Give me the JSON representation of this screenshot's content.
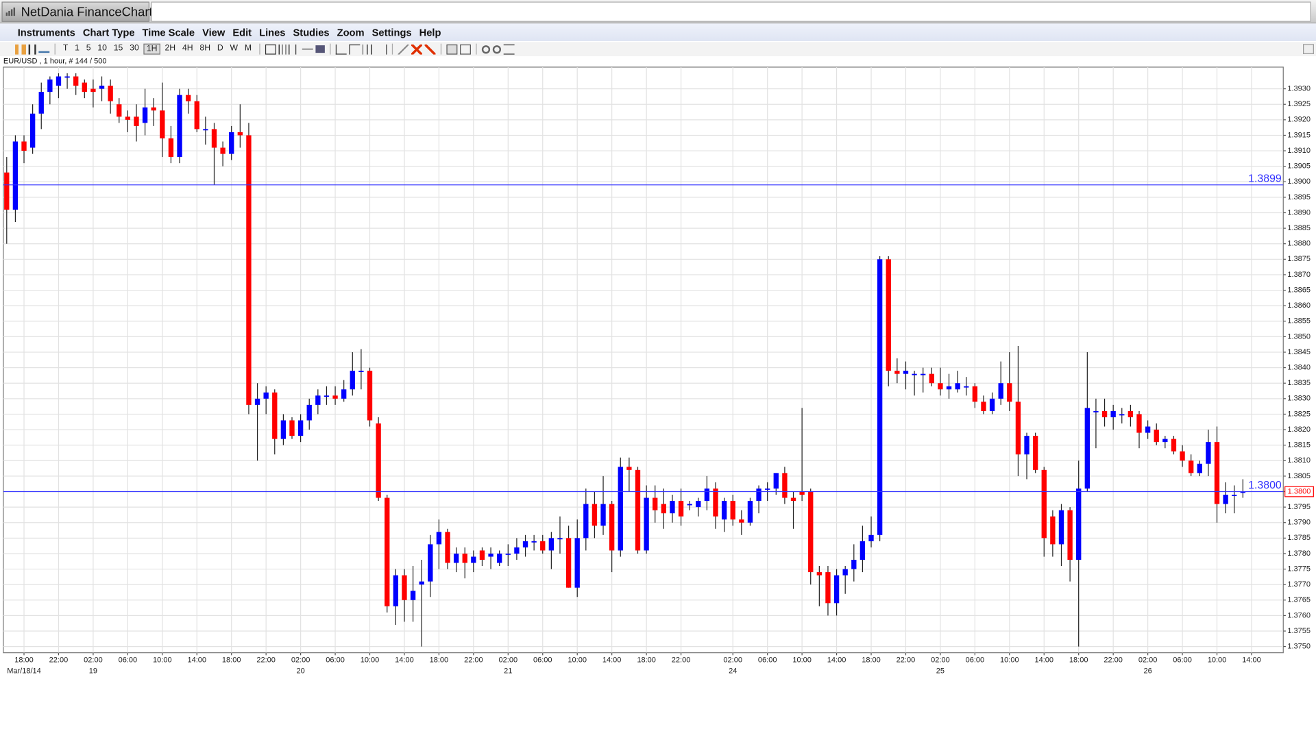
{
  "app": {
    "title": "NetDania FinanceChart",
    "menu": [
      "Instruments",
      "Chart Type",
      "Time Scale",
      "View",
      "Edit",
      "Lines",
      "Studies",
      "Zoom",
      "Settings",
      "Help"
    ],
    "toolbar": [
      "T",
      "1",
      "5",
      "10",
      "15",
      "30",
      "1H",
      "2H",
      "4H",
      "8H",
      "D",
      "W",
      "M"
    ]
  },
  "chart_data": {
    "type": "candlestick",
    "title": "EUR/USD , 1 hour, # 144 / 500",
    "up_color": "#0000ff",
    "down_color": "#ff0000",
    "wick_color": "#222222",
    "grid": true,
    "categories": [
      null,
      null,
      "18:00",
      null,
      null,
      null,
      "22:00",
      null,
      null,
      null,
      "02:00",
      null,
      null,
      null,
      "06:00",
      null,
      null,
      null,
      "10:00",
      null,
      null,
      null,
      "14:00",
      null,
      null,
      null,
      "18:00",
      null,
      null,
      null,
      "22:00",
      null,
      null,
      null,
      "02:00",
      null,
      null,
      null,
      "06:00",
      null,
      null,
      null,
      "10:00",
      null,
      null,
      null,
      "14:00",
      null,
      null,
      null,
      "18:00",
      null,
      null,
      null,
      "22:00",
      null,
      null,
      null,
      "02:00",
      null,
      null,
      null,
      "06:00",
      null,
      null,
      null,
      "10:00",
      null,
      null,
      null,
      "14:00",
      null,
      null,
      null,
      "18:00",
      null,
      null,
      null,
      "22:00",
      null,
      null,
      null,
      null,
      null,
      "02:00",
      null,
      null,
      null,
      "06:00",
      null,
      null,
      null,
      "10:00",
      null,
      null,
      null,
      "14:00",
      null,
      null,
      null,
      "18:00",
      null,
      null,
      null,
      "22:00",
      null,
      null,
      null,
      "02:00",
      null,
      null,
      null,
      "06:00",
      null,
      null,
      null,
      "10:00",
      null,
      null,
      null,
      "14:00",
      null,
      null,
      null,
      "18:00",
      null,
      null,
      null,
      "22:00",
      null,
      null,
      null,
      "02:00",
      null,
      null,
      null,
      "06:00",
      null,
      null,
      null,
      "10:00",
      null,
      null,
      null,
      "14:00"
    ],
    "x_sublabels": [
      null,
      null,
      "Mar/18/14",
      null,
      null,
      null,
      null,
      null,
      null,
      null,
      "19",
      null,
      null,
      null,
      null,
      null,
      null,
      null,
      null,
      null,
      null,
      null,
      null,
      null,
      null,
      null,
      null,
      null,
      null,
      null,
      null,
      null,
      null,
      null,
      "20",
      null,
      null,
      null,
      null,
      null,
      null,
      null,
      null,
      null,
      null,
      null,
      null,
      null,
      null,
      null,
      null,
      null,
      null,
      null,
      null,
      null,
      null,
      null,
      "21",
      null,
      null,
      null,
      null,
      null,
      null,
      null,
      null,
      null,
      null,
      null,
      null,
      null,
      null,
      null,
      null,
      null,
      null,
      null,
      null,
      null,
      null,
      null,
      null,
      null,
      "24",
      null,
      null,
      null,
      null,
      null,
      null,
      null,
      null,
      null,
      null,
      null,
      null,
      null,
      null,
      null,
      null,
      null,
      null,
      null,
      null,
      null,
      null,
      null,
      "25",
      null,
      null,
      null,
      null,
      null,
      null,
      null,
      null,
      null,
      null,
      null,
      null,
      null,
      null,
      null,
      null,
      null,
      null,
      null,
      null,
      null,
      null,
      null,
      "26",
      null,
      null,
      null,
      null,
      null,
      null,
      null,
      null,
      null,
      null,
      null,
      null
    ],
    "open": [
      1.3903,
      1.3891,
      1.3913,
      1.3911,
      1.3922,
      1.3929,
      1.3931,
      1.3934,
      1.3934,
      1.3932,
      1.393,
      1.393,
      1.3931,
      1.3925,
      1.3921,
      1.3921,
      1.3919,
      1.3924,
      1.3923,
      1.3914,
      1.3908,
      1.3928,
      1.3926,
      1.3917,
      1.3917,
      1.3911,
      1.3909,
      1.3916,
      1.3915,
      1.3828,
      1.383,
      1.3832,
      1.3817,
      1.3823,
      1.3818,
      1.3823,
      1.3828,
      1.3831,
      1.3831,
      1.383,
      1.3833,
      1.3839,
      1.3839,
      1.3822,
      1.3798,
      1.3763,
      1.3773,
      1.3765,
      1.377,
      1.3771,
      1.3783,
      1.3787,
      1.3777,
      1.378,
      1.3777,
      1.3781,
      1.3779,
      1.3777,
      1.378,
      1.378,
      1.3782,
      1.3784,
      1.3784,
      1.3781,
      1.3785,
      1.3785,
      1.3769,
      1.3785,
      1.3796,
      1.3789,
      1.3796,
      1.3781,
      1.3808,
      1.3807,
      1.3781,
      1.3798,
      1.3796,
      1.3793,
      1.3797,
      1.3796,
      1.3795,
      1.3797,
      1.3801,
      1.3791,
      1.3797,
      1.3791,
      1.379,
      1.3797,
      1.3801,
      1.3801,
      1.3806,
      1.3798,
      1.38,
      1.38,
      1.3774,
      1.3774,
      1.3764,
      1.3773,
      1.3775,
      1.3778,
      1.3784,
      1.3786,
      1.3875,
      1.3839,
      1.3838,
      1.3838,
      1.3838,
      1.3838,
      1.3835,
      1.3833,
      1.3833,
      1.3834,
      1.3834,
      1.3829,
      1.3826,
      1.383,
      1.3835,
      1.3829,
      1.3812,
      1.3818,
      1.3807,
      1.3792,
      1.3783,
      1.3794,
      1.3778,
      1.3801,
      1.3826,
      1.3826,
      1.3824,
      1.3825,
      1.3826,
      1.3825,
      1.3819,
      1.382,
      1.3816,
      1.3817,
      1.3813,
      1.381,
      1.3806,
      1.3809,
      1.3816,
      1.3796,
      1.3799,
      1.38,
      null
    ],
    "high": [
      1.3908,
      1.3915,
      1.3915,
      1.3925,
      1.3932,
      1.3934,
      1.3935,
      1.3935,
      1.3935,
      1.3933,
      1.3933,
      1.3934,
      1.3933,
      1.3927,
      1.3923,
      1.3925,
      1.393,
      1.3927,
      1.3932,
      1.3918,
      1.393,
      1.393,
      1.3928,
      1.3921,
      1.3919,
      1.3913,
      1.3918,
      1.3925,
      1.3919,
      1.3835,
      1.3834,
      1.3833,
      1.3825,
      1.3824,
      1.3825,
      1.383,
      1.3833,
      1.3834,
      1.3834,
      1.3836,
      1.3845,
      1.3846,
      1.384,
      1.3824,
      1.3799,
      1.3775,
      1.3775,
      1.3776,
      1.3778,
      1.3786,
      1.3791,
      1.3788,
      1.3782,
      1.3782,
      1.3781,
      1.3782,
      1.3782,
      1.3781,
      1.3783,
      1.3785,
      1.3786,
      1.3786,
      1.3786,
      1.3787,
      1.3792,
      1.3789,
      1.3791,
      1.3801,
      1.38,
      1.3805,
      1.3797,
      1.3811,
      1.3811,
      1.3808,
      1.3802,
      1.3802,
      1.3801,
      1.3799,
      1.3801,
      1.3797,
      1.3798,
      1.3805,
      1.3803,
      1.3798,
      1.3799,
      1.3794,
      1.3798,
      1.3802,
      1.3803,
      1.3806,
      1.3808,
      1.38,
      1.3827,
      1.3801,
      1.3776,
      1.3776,
      1.3775,
      1.3776,
      1.3783,
      1.3789,
      1.3792,
      1.3876,
      1.3876,
      1.3843,
      1.3842,
      1.3839,
      1.384,
      1.384,
      1.384,
      1.3838,
      1.3839,
      1.3837,
      1.3835,
      1.3831,
      1.3832,
      1.3842,
      1.3845,
      1.3847,
      1.3819,
      1.3819,
      1.3808,
      1.3794,
      1.3796,
      1.3795,
      1.381,
      1.3845,
      1.383,
      1.383,
      1.3828,
      1.3827,
      1.3828,
      1.3826,
      1.3823,
      1.3822,
      1.3818,
      1.3818,
      1.3815,
      1.3812,
      1.381,
      1.382,
      1.3821,
      1.3803,
      1.3802,
      1.3804,
      null
    ],
    "low": [
      1.388,
      1.3887,
      1.3906,
      1.3909,
      1.3917,
      1.3925,
      1.3927,
      1.393,
      1.3928,
      1.3927,
      1.3924,
      1.3926,
      1.3922,
      1.3919,
      1.3916,
      1.3913,
      1.3915,
      1.3918,
      1.3908,
      1.3906,
      1.3906,
      1.3922,
      1.3916,
      1.3912,
      1.3899,
      1.3905,
      1.3907,
      1.3911,
      1.3825,
      1.381,
      1.3825,
      1.3812,
      1.3815,
      1.3817,
      1.3816,
      1.382,
      1.3825,
      1.3828,
      1.3828,
      1.3829,
      1.3831,
      1.3833,
      1.3821,
      1.3797,
      1.3761,
      1.3757,
      1.3758,
      1.3758,
      1.375,
      1.3766,
      1.3775,
      1.3775,
      1.3774,
      1.3772,
      1.3774,
      1.3776,
      1.3775,
      1.3776,
      1.3776,
      1.3778,
      1.3779,
      1.3781,
      1.378,
      1.3775,
      1.378,
      1.3769,
      1.3766,
      1.3781,
      1.3785,
      1.3786,
      1.3774,
      1.3779,
      1.38,
      1.378,
      1.378,
      1.379,
      1.3788,
      1.379,
      1.3789,
      1.3794,
      1.3792,
      1.3794,
      1.3788,
      1.3787,
      1.3789,
      1.3786,
      1.3789,
      1.3793,
      1.3797,
      1.3799,
      1.3796,
      1.3788,
      1.3797,
      1.377,
      1.3763,
      1.376,
      1.376,
      1.3767,
      1.3771,
      1.3774,
      1.3782,
      1.3784,
      1.3834,
      1.3835,
      1.3833,
      1.3831,
      1.3832,
      1.3834,
      1.3831,
      1.383,
      1.3832,
      1.3831,
      1.3827,
      1.3825,
      1.3825,
      1.3828,
      1.3826,
      1.3805,
      1.3804,
      1.3806,
      1.3779,
      1.3779,
      1.3776,
      1.3771,
      1.375,
      1.38,
      1.3814,
      1.3821,
      1.382,
      1.3822,
      1.3821,
      1.3814,
      1.3817,
      1.3815,
      1.3814,
      1.3812,
      1.3808,
      1.3805,
      1.3805,
      1.3805,
      1.379,
      1.3793,
      1.3793,
      1.3798,
      null
    ],
    "close": [
      1.3891,
      1.3913,
      1.391,
      1.3922,
      1.3929,
      1.3933,
      1.3934,
      1.3934,
      1.3931,
      1.3929,
      1.3929,
      1.3931,
      1.3926,
      1.3921,
      1.392,
      1.3918,
      1.3924,
      1.3923,
      1.3914,
      1.3908,
      1.3928,
      1.3926,
      1.3917,
      1.3917,
      1.3911,
      1.3909,
      1.3916,
      1.3915,
      1.3828,
      1.383,
      1.3832,
      1.3817,
      1.3823,
      1.3818,
      1.3823,
      1.3828,
      1.3831,
      1.3831,
      1.383,
      1.3833,
      1.3839,
      1.3839,
      1.3823,
      1.3798,
      1.3763,
      1.3773,
      1.3765,
      1.3768,
      1.3771,
      1.3783,
      1.3787,
      1.3777,
      1.378,
      1.3777,
      1.3779,
      1.3778,
      1.378,
      1.378,
      1.378,
      1.3782,
      1.3784,
      1.3784,
      1.3781,
      1.3785,
      1.3785,
      1.3769,
      1.3785,
      1.3796,
      1.3789,
      1.3796,
      1.3781,
      1.3808,
      1.3807,
      1.3781,
      1.3798,
      1.3794,
      1.3793,
      1.3797,
      1.3792,
      1.3796,
      1.3797,
      1.3801,
      1.3792,
      1.3797,
      1.3791,
      1.379,
      1.3797,
      1.3801,
      1.3801,
      1.3806,
      1.3798,
      1.3797,
      1.3799,
      1.3774,
      1.3773,
      1.3764,
      1.3773,
      1.3775,
      1.3778,
      1.3784,
      1.3786,
      1.3875,
      1.3839,
      1.3838,
      1.3839,
      1.3838,
      1.3838,
      1.3835,
      1.3833,
      1.3834,
      1.3835,
      1.3834,
      1.3829,
      1.3826,
      1.383,
      1.3835,
      1.3829,
      1.3812,
      1.3818,
      1.3807,
      1.3785,
      1.3783,
      1.3794,
      1.3778,
      1.3801,
      1.3827,
      1.3826,
      1.3824,
      1.3826,
      1.3825,
      1.3824,
      1.3819,
      1.3821,
      1.3816,
      1.3817,
      1.3813,
      1.381,
      1.3806,
      1.3809,
      1.3816,
      1.3796,
      1.3799,
      1.3799,
      1.38,
      null
    ],
    "ylim": [
      1.3748,
      1.3937
    ],
    "yticks": [
      {
        "value": 1.375,
        "label": "1.3750"
      },
      1.3755,
      {
        "value": 1.376,
        "label": "1.3760"
      },
      1.3765,
      {
        "value": 1.377,
        "label": "1.3770"
      },
      1.3775,
      {
        "value": 1.378,
        "label": "1.3780"
      },
      1.3785,
      {
        "value": 1.379,
        "label": "1.3790"
      },
      1.3795,
      {
        "value": 1.38,
        "label": "1.3800"
      },
      1.3805,
      {
        "value": 1.381,
        "label": "1.3810"
      },
      1.3815,
      {
        "value": 1.382,
        "label": "1.3820"
      },
      1.3825,
      {
        "value": 1.383,
        "label": "1.3830"
      },
      1.3835,
      {
        "value": 1.384,
        "label": "1.3840"
      },
      1.3845,
      {
        "value": 1.385,
        "label": "1.3850"
      },
      1.3855,
      {
        "value": 1.386,
        "label": "1.3860"
      },
      1.3865,
      {
        "value": 1.387,
        "label": "1.3870"
      },
      1.3875,
      {
        "value": 1.388,
        "label": "1.3880"
      },
      1.3885,
      {
        "value": 1.389,
        "label": "1.3890"
      },
      1.3895,
      {
        "value": 1.39,
        "label": "1.3900"
      },
      1.3905,
      {
        "value": 1.391,
        "label": "1.3910"
      },
      1.3915,
      {
        "value": 1.392,
        "label": "1.3920"
      },
      1.3925,
      {
        "value": 1.393,
        "label": "1.3930"
      }
    ],
    "hlines": [
      {
        "value": 1.3899,
        "label": "1.3899",
        "color": "#3333ff"
      },
      {
        "value": 1.38,
        "label": "1.3800",
        "color": "#3333ff"
      }
    ],
    "last_price": {
      "value": 1.38,
      "label": "1.3800",
      "color": "#ff0000"
    }
  }
}
